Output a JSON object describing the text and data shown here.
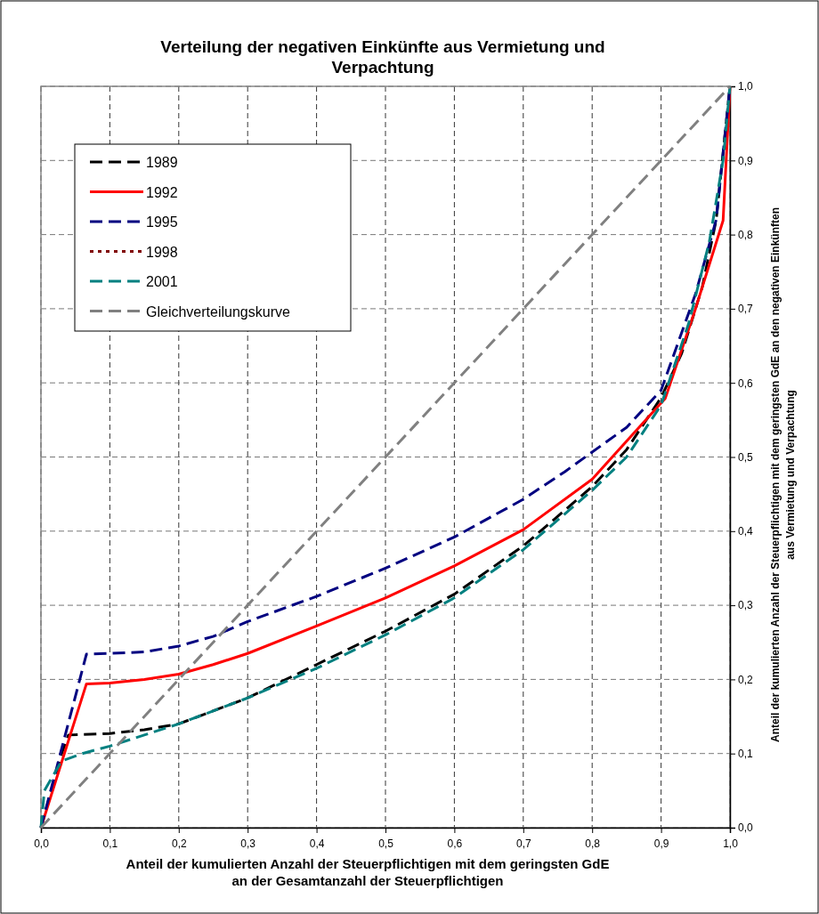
{
  "chart_data": {
    "type": "line",
    "title": "Verteilung der negativen Einkünfte aus Vermietung und Verpachtung",
    "xlabel": "Anteil der kumulierten Anzahl der Steuerpflichtigen mit dem geringsten GdE an der Gesamtanzahl der Steuerpflichtigen",
    "ylabel": "Anteil der kumulierten Anzahl der Steuerpflichtigen mit dem geringsten GdE an den negativen Einkünften aus Vermietung und Verpachtung",
    "xlim": [
      0,
      1
    ],
    "ylim": [
      0,
      1
    ],
    "xticks": [
      {
        "value": 0,
        "label": "0,0"
      },
      {
        "value": 0.1,
        "label": "0,1"
      },
      {
        "value": 0.2,
        "label": "0,2"
      },
      {
        "value": 0.3,
        "label": "0,3"
      },
      {
        "value": 0.4,
        "label": "0,4"
      },
      {
        "value": 0.5,
        "label": "0,5"
      },
      {
        "value": 0.6,
        "label": "0,6"
      },
      {
        "value": 0.7,
        "label": "0,7"
      },
      {
        "value": 0.8,
        "label": "0,8"
      },
      {
        "value": 0.9,
        "label": "0,9"
      },
      {
        "value": 1,
        "label": "1,0"
      }
    ],
    "yticks": [
      {
        "value": 0,
        "label": "0,0"
      },
      {
        "value": 0.1,
        "label": "0,1"
      },
      {
        "value": 0.2,
        "label": "0,2"
      },
      {
        "value": 0.3,
        "label": "0,3"
      },
      {
        "value": 0.4,
        "label": "0,4"
      },
      {
        "value": 0.5,
        "label": "0,5"
      },
      {
        "value": 0.6,
        "label": "0,6"
      },
      {
        "value": 0.7,
        "label": "0,7"
      },
      {
        "value": 0.8,
        "label": "0,8"
      },
      {
        "value": 0.9,
        "label": "0,9"
      },
      {
        "value": 1,
        "label": "1,0"
      }
    ],
    "grid": true,
    "legend": "top left",
    "marker": "none",
    "series": [
      {
        "name": "1989",
        "color": "#000000",
        "line_style": "dashed",
        "x": [
          0,
          0.03,
          0.04,
          0.1,
          0.15,
          0.2,
          0.3,
          0.4,
          0.5,
          0.6,
          0.7,
          0.8,
          0.85,
          0.9,
          0.93,
          0.96,
          0.98,
          1
        ],
        "values": [
          0,
          0.1,
          0.125,
          0.127,
          0.132,
          0.14,
          0.175,
          0.22,
          0.265,
          0.315,
          0.38,
          0.46,
          0.51,
          0.58,
          0.64,
          0.73,
          0.82,
          1
        ]
      },
      {
        "name": "1992",
        "color": "#ff0000",
        "line_style": "solid",
        "x": [
          0,
          0.066,
          0.1,
          0.15,
          0.2,
          0.25,
          0.3,
          0.4,
          0.5,
          0.6,
          0.7,
          0.8,
          0.906,
          0.95,
          0.99,
          1
        ],
        "values": [
          0,
          0.194,
          0.195,
          0.2,
          0.207,
          0.22,
          0.235,
          0.272,
          0.31,
          0.353,
          0.402,
          0.47,
          0.579,
          0.7,
          0.819,
          1
        ]
      },
      {
        "name": "1995",
        "color": "#000080",
        "line_style": "dashed",
        "x": [
          0,
          0.066,
          0.1,
          0.15,
          0.2,
          0.25,
          0.3,
          0.4,
          0.5,
          0.6,
          0.7,
          0.76,
          0.85,
          0.9,
          0.95,
          0.98,
          1
        ],
        "values": [
          0,
          0.234,
          0.235,
          0.237,
          0.245,
          0.258,
          0.278,
          0.312,
          0.35,
          0.392,
          0.443,
          0.48,
          0.54,
          0.59,
          0.72,
          0.82,
          1
        ]
      },
      {
        "name": "1998",
        "color": "#800000",
        "line_style": "dotted"
      },
      {
        "name": "2001",
        "color": "#008080",
        "line_style": "dashed",
        "x": [
          0,
          0.005,
          0.03,
          0.06,
          0.1,
          0.15,
          0.2,
          0.3,
          0.4,
          0.5,
          0.6,
          0.7,
          0.8,
          0.85,
          0.9,
          0.94,
          0.97,
          0.99,
          1
        ],
        "values": [
          0,
          0.05,
          0.09,
          0.1,
          0.11,
          0.125,
          0.14,
          0.175,
          0.215,
          0.26,
          0.31,
          0.375,
          0.455,
          0.5,
          0.57,
          0.68,
          0.79,
          0.9,
          1
        ]
      },
      {
        "name": "Gleichverteilungskurve",
        "color": "#808080",
        "line_style": "dashed",
        "x": [
          0,
          1
        ],
        "values": [
          0,
          1
        ]
      }
    ]
  }
}
